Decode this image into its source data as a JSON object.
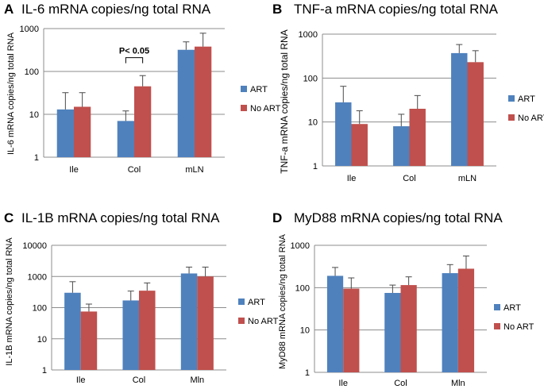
{
  "colors": {
    "art": "#4F81BD",
    "no_art": "#C0504D",
    "grid": "#8C8C8C",
    "axis": "#8C8C8C",
    "error": "#4A4A4A",
    "text": "#000000"
  },
  "chart_data": [
    {
      "type": "bar",
      "panel": "A",
      "title": "IL-6 mRNA copies/ng total RNA",
      "ylabel": "IL-6 mRNA copies/ng total RNA",
      "xlabel": "",
      "yscale": "log",
      "ylim": [
        1,
        1000
      ],
      "yticks": [
        "1",
        "10",
        "100",
        "1000"
      ],
      "categories": [
        "Ile",
        "Col",
        "mLN"
      ],
      "legend_position": "right",
      "series": [
        {
          "name": "ART",
          "color": "#4F81BD",
          "values": [
            13,
            7,
            320
          ],
          "errors": [
            32,
            12,
            490
          ]
        },
        {
          "name": "No ART",
          "color": "#C0504D",
          "values": [
            15,
            45,
            380
          ],
          "errors": [
            32,
            80,
            780
          ]
        }
      ],
      "annotations": [
        {
          "text": "P< 0.05",
          "between": [
            "Col:ART",
            "Col:No ART"
          ],
          "y": 210
        }
      ]
    },
    {
      "type": "bar",
      "panel": "B",
      "title": "TNF-a mRNA copies/ng total RNA",
      "ylabel": "TNF-a mRNA copies/ng total RNA",
      "xlabel": "",
      "yscale": "log",
      "ylim": [
        1,
        1000
      ],
      "yticks": [
        "1",
        "10",
        "100",
        "1000"
      ],
      "categories": [
        "Ile",
        "Col",
        "mLN"
      ],
      "legend_position": "right",
      "series": [
        {
          "name": "ART",
          "color": "#4F81BD",
          "values": [
            28,
            8,
            370
          ],
          "errors": [
            65,
            15,
            580
          ]
        },
        {
          "name": "No ART",
          "color": "#C0504D",
          "values": [
            9,
            20,
            230
          ],
          "errors": [
            18,
            40,
            420
          ]
        }
      ]
    },
    {
      "type": "bar",
      "panel": "C",
      "title": "IL-1B mRNA copies/ng total RNA",
      "ylabel": "IL-1B mRNA copies/ng total RNA",
      "xlabel": "",
      "yscale": "log",
      "ylim": [
        1,
        10000
      ],
      "yticks": [
        "1",
        "10",
        "100",
        "1000",
        "10000"
      ],
      "categories": [
        "Ile",
        "Col",
        "Mln"
      ],
      "legend_position": "right",
      "series": [
        {
          "name": "ART",
          "color": "#4F81BD",
          "values": [
            300,
            170,
            1250
          ],
          "errors": [
            680,
            340,
            2000
          ]
        },
        {
          "name": "No ART",
          "color": "#C0504D",
          "values": [
            75,
            350,
            1000
          ],
          "errors": [
            130,
            620,
            2000
          ]
        }
      ]
    },
    {
      "type": "bar",
      "panel": "D",
      "title": "MyD88 mRNA copies/ng total RNA",
      "ylabel": "MyD88 mRNA copies/ng total RNA",
      "xlabel": "",
      "yscale": "log",
      "ylim": [
        1,
        1000
      ],
      "yticks": [
        "1",
        "10",
        "100",
        "1000"
      ],
      "categories": [
        "Ile",
        "Col",
        "Mln"
      ],
      "legend_position": "right",
      "series": [
        {
          "name": "ART",
          "color": "#4F81BD",
          "values": [
            190,
            75,
            220
          ],
          "errors": [
            300,
            115,
            350
          ]
        },
        {
          "name": "No ART",
          "color": "#C0504D",
          "values": [
            95,
            115,
            280
          ],
          "errors": [
            170,
            180,
            560
          ]
        }
      ]
    }
  ]
}
